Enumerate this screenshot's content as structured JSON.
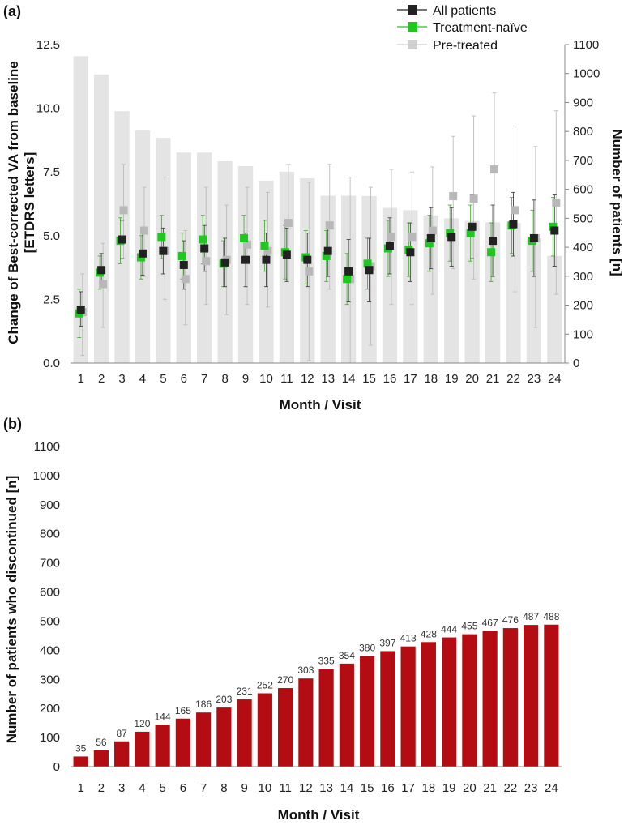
{
  "panels": {
    "a_label": "(a)",
    "b_label": "(b)"
  },
  "chart_data": [
    {
      "type": "bar+errorbar",
      "panel": "(a)",
      "categories": [
        "1",
        "2",
        "3",
        "4",
        "5",
        "6",
        "7",
        "8",
        "9",
        "10",
        "11",
        "12",
        "13",
        "14",
        "15",
        "16",
        "17",
        "18",
        "19",
        "20",
        "21",
        "22",
        "23",
        "24"
      ],
      "xlabel": "Month / Visit",
      "ylabel_left": "Change of Best-corrected VA from baseline [ETDRS letters]",
      "ylabel_right": "Number of patients [n]",
      "ylim_left": [
        0,
        12.5
      ],
      "yticks_left": [
        "0.0",
        "2.5",
        "5.0",
        "7.5",
        "10.0",
        "12.5"
      ],
      "ylim_right": [
        0,
        1100
      ],
      "yticks_right": [
        "0",
        "100",
        "200",
        "300",
        "400",
        "500",
        "600",
        "700",
        "800",
        "900",
        "1000",
        "1100"
      ],
      "patients_bars": [
        1060,
        997,
        870,
        803,
        778,
        727,
        727,
        697,
        680,
        630,
        661,
        638,
        578,
        578,
        577,
        536,
        528,
        510,
        500,
        491,
        486,
        484,
        431,
        370
      ],
      "legend": [
        "All patients",
        "Treatment-naïve",
        "Pre-treated"
      ],
      "colors": {
        "all": "#222222",
        "naive": "#1ec81e",
        "pretreated": "#b8b8b8",
        "bars": "#e4e4e4"
      },
      "series": [
        {
          "name": "All patients",
          "values": [
            2.1,
            3.65,
            4.85,
            4.3,
            4.4,
            3.85,
            4.5,
            3.95,
            4.05,
            4.05,
            4.25,
            4.05,
            4.4,
            3.6,
            3.65,
            4.6,
            4.35,
            4.9,
            4.95,
            5.35,
            4.8,
            5.45,
            4.9,
            5.2
          ],
          "err_lo": [
            1.45,
            3.0,
            4.1,
            3.45,
            3.5,
            2.9,
            3.6,
            3.0,
            3.0,
            3.0,
            3.2,
            3.0,
            3.4,
            2.4,
            2.4,
            3.5,
            3.2,
            3.7,
            3.8,
            4.1,
            3.4,
            4.2,
            3.4,
            3.8
          ],
          "err_hi": [
            2.8,
            4.3,
            5.6,
            5.1,
            5.3,
            4.8,
            5.4,
            4.9,
            5.1,
            5.1,
            5.3,
            5.1,
            5.4,
            4.85,
            4.9,
            5.7,
            5.5,
            6.1,
            6.1,
            6.6,
            6.2,
            6.7,
            6.4,
            6.6
          ]
        },
        {
          "name": "Treatment-naïve",
          "values": [
            1.95,
            3.55,
            4.8,
            4.15,
            4.95,
            4.2,
            4.85,
            3.9,
            4.9,
            4.6,
            4.35,
            4.15,
            4.2,
            3.3,
            3.9,
            4.5,
            4.45,
            4.7,
            5.1,
            5.1,
            4.35,
            5.4,
            4.8,
            5.35
          ],
          "err_lo": [
            1.0,
            2.9,
            3.9,
            3.3,
            4.1,
            3.3,
            3.9,
            3.0,
            4.0,
            3.6,
            3.3,
            3.1,
            3.2,
            2.3,
            2.9,
            3.4,
            3.4,
            3.6,
            4.0,
            4.0,
            3.2,
            4.3,
            3.6,
            4.2
          ],
          "err_hi": [
            2.9,
            4.2,
            5.7,
            5.0,
            5.8,
            5.1,
            5.8,
            4.8,
            5.8,
            5.6,
            5.4,
            5.2,
            5.2,
            4.3,
            4.9,
            5.6,
            5.5,
            5.8,
            6.2,
            6.2,
            5.5,
            6.5,
            6.0,
            6.5
          ]
        },
        {
          "name": "Pre-treated",
          "values": [
            2.0,
            3.1,
            6.0,
            5.2,
            4.4,
            3.3,
            4.0,
            4.05,
            4.65,
            4.4,
            5.5,
            3.6,
            5.4,
            3.3,
            3.8,
            4.95,
            4.95,
            5.2,
            6.55,
            6.45,
            7.6,
            6.0,
            4.9,
            6.3
          ],
          "err_lo": [
            0.3,
            1.4,
            4.1,
            3.4,
            2.5,
            1.5,
            2.3,
            1.9,
            2.3,
            2.2,
            3.1,
            0.1,
            2.9,
            0.0,
            0.7,
            2.3,
            2.3,
            2.7,
            3.7,
            3.3,
            4.6,
            2.8,
            1.4,
            2.7
          ],
          "err_hi": [
            3.5,
            4.7,
            7.8,
            6.9,
            7.3,
            5.2,
            6.9,
            6.2,
            6.9,
            6.7,
            7.8,
            7.1,
            7.8,
            7.3,
            6.9,
            7.6,
            7.5,
            7.7,
            8.9,
            9.7,
            10.6,
            9.3,
            8.5,
            9.9
          ]
        }
      ]
    },
    {
      "type": "bar",
      "panel": "(b)",
      "categories": [
        "1",
        "2",
        "3",
        "4",
        "5",
        "6",
        "7",
        "8",
        "9",
        "10",
        "11",
        "12",
        "13",
        "14",
        "15",
        "16",
        "17",
        "18",
        "19",
        "20",
        "21",
        "22",
        "23",
        "24"
      ],
      "values": [
        35,
        56,
        87,
        120,
        144,
        165,
        186,
        203,
        231,
        252,
        270,
        303,
        335,
        354,
        380,
        397,
        413,
        428,
        444,
        455,
        467,
        476,
        487,
        488
      ],
      "xlabel": "Month / Visit",
      "ylabel": "Number of patients who discontinued [n]",
      "ylim": [
        0,
        1100
      ],
      "yticks": [
        "0",
        "100",
        "200",
        "300",
        "400",
        "500",
        "600",
        "700",
        "800",
        "900",
        "1000",
        "1100"
      ],
      "bar_color": "#b30c12"
    }
  ]
}
